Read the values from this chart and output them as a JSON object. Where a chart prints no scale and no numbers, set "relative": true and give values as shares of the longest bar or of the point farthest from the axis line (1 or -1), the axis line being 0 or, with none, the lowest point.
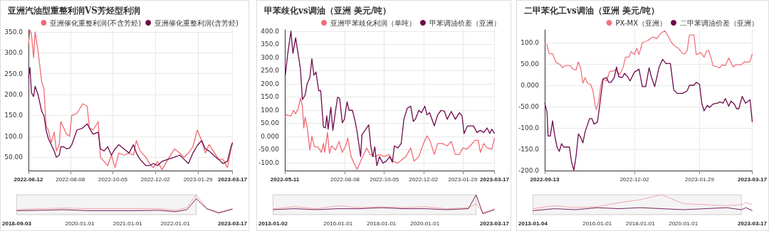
{
  "chart_data": [
    {
      "type": "line",
      "title": "亚洲汽油型重整利润VS芳烃型利润",
      "legend": "top right",
      "grid": true,
      "x": [
        "2022-06-12",
        "2022-06-14",
        "2022-06-16",
        "2022-06-19",
        "2022-06-21",
        "2022-06-25",
        "2022-06-30",
        "2022-07-03",
        "2022-07-06",
        "2022-07-09",
        "2022-07-13",
        "2022-07-17",
        "2022-07-20",
        "2022-07-24",
        "2022-07-26",
        "2022-07-30",
        "2022-08-03",
        "2022-08-07",
        "2022-08-10",
        "2022-08-17",
        "2022-08-25",
        "2022-08-31",
        "2022-09-03",
        "2022-09-08",
        "2022-09-15",
        "2022-09-18",
        "2022-09-23",
        "2022-09-28",
        "2022-10-03",
        "2022-10-08",
        "2022-10-13",
        "2022-10-20",
        "2022-10-27",
        "2022-11-02",
        "2022-11-06",
        "2022-11-11",
        "2022-11-19",
        "2022-11-24",
        "2022-11-29",
        "2022-12-05",
        "2022-12-11",
        "2022-12-19",
        "2022-12-28",
        "2023-01-04",
        "2023-01-10",
        "2023-01-16",
        "2023-01-22",
        "2023-01-28",
        "2023-02-03",
        "2023-02-08",
        "2023-02-13",
        "2023-02-19",
        "2023-02-26",
        "2023-03-04",
        "2023-03-10",
        "2023-03-15",
        "2023-03-17"
      ],
      "series": [
        {
          "name": "亚洲催化重整利润(不含芳烃)",
          "color": "#f26b73",
          "values": [
            320,
            355,
            345,
            288,
            350,
            305,
            230,
            215,
            125,
            115,
            85,
            110,
            65,
            80,
            135,
            120,
            105,
            100,
            150,
            155,
            178,
            172,
            121,
            115,
            135,
            50,
            40,
            30,
            55,
            25,
            60,
            55,
            60,
            55,
            90,
            65,
            50,
            35,
            25,
            40,
            20,
            45,
            70,
            60,
            50,
            60,
            75,
            115,
            90,
            60,
            80,
            65,
            45,
            45,
            25,
            70,
            85
          ]
        },
        {
          "name": "亚洲催化重整利润(含芳烃)",
          "color": "#6e0b4c",
          "values": [
            240,
            265,
            205,
            195,
            220,
            200,
            160,
            150,
            115,
            95,
            80,
            65,
            50,
            55,
            75,
            75,
            70,
            72,
            80,
            115,
            120,
            130,
            120,
            105,
            110,
            70,
            65,
            75,
            55,
            70,
            80,
            70,
            60,
            80,
            60,
            45,
            30,
            30,
            35,
            30,
            40,
            45,
            50,
            55,
            45,
            35,
            60,
            78,
            90,
            70,
            65,
            55,
            45,
            35,
            40,
            75,
            85
          ]
        }
      ],
      "xlim": [
        "2022-06-12",
        "2023-03-17"
      ],
      "xticks": [
        "2022-06-12",
        "2022-08-08",
        "2022-10-05",
        "2022-12-02",
        "2023-01-29",
        "2023-03-17"
      ],
      "ylim": [
        18,
        355
      ],
      "yticks": [
        {
          "value": 50,
          "label": "50.00"
        },
        {
          "value": 100,
          "label": "100.0"
        },
        {
          "value": 150,
          "label": "150.0"
        },
        {
          "value": 200,
          "label": "200.0"
        },
        {
          "value": 250,
          "label": "250.0"
        },
        {
          "value": 300,
          "label": "300.0"
        },
        {
          "value": 350,
          "label": "350.0"
        }
      ]
    },
    {
      "type": "line",
      "title": "甲苯歧化vs调油（亚洲 美元/吨）",
      "legend": "top right",
      "grid": true,
      "series": [
        {
          "name": "亚洲甲苯歧化利润（单吨）",
          "color": "#f26b73",
          "x": [
            "2022-05-11",
            "2022-05-13",
            "2022-05-20",
            "2022-05-24",
            "2022-05-27",
            "2022-05-31",
            "2022-06-03",
            "2022-06-06",
            "2022-06-08",
            "2022-06-10",
            "2022-06-13",
            "2022-06-17",
            "2022-06-20",
            "2022-06-24",
            "2022-06-29",
            "2022-07-04",
            "2022-07-07",
            "2022-07-09",
            "2022-07-13",
            "2022-07-16",
            "2022-07-19",
            "2022-07-25",
            "2022-07-30",
            "2022-08-04",
            "2022-08-09",
            "2022-08-12",
            "2022-08-17",
            "2022-08-23",
            "2022-08-26",
            "2022-08-31",
            "2022-09-09",
            "2022-09-14",
            "2022-09-21",
            "2022-09-28",
            "2022-10-05",
            "2022-10-12",
            "2022-10-18",
            "2022-10-25",
            "2022-11-01",
            "2022-11-06",
            "2022-11-13",
            "2022-11-18",
            "2022-11-25",
            "2022-12-02",
            "2022-12-07",
            "2022-12-12",
            "2022-12-18",
            "2022-12-23",
            "2022-12-30",
            "2023-01-06",
            "2023-01-12",
            "2023-01-18",
            "2023-01-24",
            "2023-01-29",
            "2023-02-04",
            "2023-02-09",
            "2023-02-16",
            "2023-02-21",
            "2023-02-24",
            "2023-03-01",
            "2023-03-06",
            "2023-03-13",
            "2023-03-17"
          ],
          "values": [
            73,
            82,
            78,
            99,
            86,
            107,
            145,
            115,
            32,
            73,
            36,
            -52,
            0,
            -40,
            -40,
            -61,
            -27,
            -61,
            15,
            -65,
            -36,
            -52,
            -19,
            -61,
            -36,
            -6,
            -77,
            -111,
            -125,
            -94,
            -44,
            -69,
            -77,
            -69,
            -77,
            -69,
            -94,
            -102,
            -86,
            -77,
            -44,
            -94,
            -77,
            -27,
            2,
            -19,
            -69,
            -27,
            -27,
            -36,
            -19,
            -69,
            -69,
            -44,
            -48,
            -36,
            -15,
            -15,
            -61,
            -27,
            -44,
            -48,
            -6
          ]
        },
        {
          "name": "甲苯调油价差（亚洲）",
          "color": "#6e0b4c",
          "x": [
            "2022-05-11",
            "2022-05-12",
            "2022-05-15",
            "2022-05-20",
            "2022-05-23",
            "2022-05-27",
            "2022-06-03",
            "2022-06-06",
            "2022-06-10",
            "2022-06-13",
            "2022-06-17",
            "2022-06-20",
            "2022-06-23",
            "2022-06-26",
            "2022-06-30",
            "2022-07-03",
            "2022-07-07",
            "2022-07-10",
            "2022-07-12",
            "2022-07-14",
            "2022-07-18",
            "2022-07-21",
            "2022-07-25",
            "2022-07-28",
            "2022-07-31",
            "2022-08-04",
            "2022-08-07",
            "2022-08-11",
            "2022-08-14",
            "2022-08-19",
            "2022-08-23",
            "2022-08-26",
            "2022-08-31",
            "2022-09-02",
            "2022-09-12",
            "2022-09-15",
            "2022-09-18",
            "2022-09-21",
            "2022-09-24",
            "2022-09-28",
            "2022-10-03",
            "2022-10-08",
            "2022-10-13",
            "2022-10-17",
            "2022-10-20",
            "2022-10-25",
            "2022-10-30",
            "2022-11-03",
            "2022-11-08",
            "2022-11-13",
            "2022-11-17",
            "2022-11-20",
            "2022-11-25",
            "2022-11-29",
            "2022-12-04",
            "2022-12-07",
            "2022-12-11",
            "2022-12-18",
            "2022-12-23",
            "2022-12-28",
            "2023-01-02",
            "2023-01-06",
            "2023-01-12",
            "2023-01-18",
            "2023-01-24",
            "2023-01-28",
            "2023-01-31",
            "2023-02-05",
            "2023-02-14",
            "2023-02-19",
            "2023-02-24",
            "2023-03-01",
            "2023-03-06",
            "2023-03-10",
            "2023-03-13",
            "2023-03-17"
          ],
          "values": [
            232,
            237,
            308,
            400,
            316,
            375,
            258,
            140,
            157,
            199,
            224,
            295,
            232,
            245,
            174,
            174,
            36,
            32,
            78,
            27,
            111,
            23,
            98,
            149,
            145,
            52,
            65,
            132,
            99,
            99,
            57,
            15,
            -77,
            6,
            44,
            -35,
            -77,
            -40,
            -111,
            -77,
            -102,
            -94,
            -77,
            -98,
            -36,
            -44,
            -27,
            65,
            107,
            115,
            57,
            65,
            99,
            90,
            115,
            82,
            90,
            40,
            82,
            99,
            95,
            65,
            95,
            65,
            90,
            78,
            11,
            40,
            40,
            15,
            23,
            15,
            32,
            11,
            27,
            11
          ]
        }
      ],
      "xlim": [
        "2022-05-11",
        "2023-03-17"
      ],
      "xticks": [
        "2022-05-11",
        "2022-08-08",
        "2022-10-05",
        "2022-12-02",
        "2023-01-29",
        "2023-03-17"
      ],
      "ylim": [
        -130,
        405
      ],
      "yticks": [
        {
          "value": -100,
          "label": "-100.0"
        },
        {
          "value": -50,
          "label": "-50.00"
        },
        {
          "value": 0,
          "label": "0.000"
        },
        {
          "value": 50,
          "label": "50.00"
        },
        {
          "value": 100,
          "label": "100.0"
        },
        {
          "value": 150,
          "label": "150.0"
        },
        {
          "value": 200,
          "label": "200.0"
        },
        {
          "value": 250,
          "label": "250.0"
        },
        {
          "value": 300,
          "label": "300.0"
        },
        {
          "value": 350,
          "label": "350.0"
        },
        {
          "value": 400,
          "label": "400.0"
        }
      ]
    },
    {
      "type": "line",
      "title": "二甲苯化工vs调油（亚洲 美元/吨）",
      "legend": "top right",
      "grid": true,
      "series": [
        {
          "name": "PX-MX（亚洲）",
          "color": "#f2737e",
          "x": [
            "2022-09-13",
            "2022-09-15",
            "2022-09-17",
            "2022-09-20",
            "2022-09-23",
            "2022-09-27",
            "2022-09-29",
            "2022-10-01",
            "2022-10-06",
            "2022-10-08",
            "2022-10-11",
            "2022-10-13",
            "2022-10-15",
            "2022-10-17",
            "2022-10-19",
            "2022-10-21",
            "2022-10-24",
            "2022-10-26",
            "2022-10-28",
            "2022-10-29",
            "2022-10-31",
            "2022-11-02",
            "2022-11-04",
            "2022-11-07",
            "2022-11-10",
            "2022-11-13",
            "2022-11-15",
            "2022-11-19",
            "2022-11-22",
            "2022-11-24",
            "2022-11-27",
            "2022-11-29",
            "2022-12-02",
            "2022-12-04",
            "2022-12-06",
            "2022-12-09",
            "2022-12-14",
            "2022-12-18",
            "2022-12-22",
            "2022-12-26",
            "2022-12-29",
            "2023-01-01",
            "2023-01-04",
            "2023-01-07",
            "2023-01-10",
            "2023-01-14",
            "2023-01-16",
            "2023-01-18",
            "2023-01-20",
            "2023-01-24",
            "2023-01-26",
            "2023-01-30",
            "2023-02-02",
            "2023-02-04",
            "2023-02-06",
            "2023-02-08",
            "2023-02-10",
            "2023-02-14",
            "2023-02-16",
            "2023-02-18",
            "2023-02-21",
            "2023-02-24",
            "2023-02-26",
            "2023-02-28",
            "2023-03-02",
            "2023-03-07",
            "2023-03-10",
            "2023-03-13",
            "2023-03-15",
            "2023-03-17"
          ],
          "values": [
            97,
            95,
            74,
            74,
            54,
            48,
            41,
            46,
            46,
            38,
            36,
            55,
            41,
            5,
            18,
            5,
            2,
            -13,
            -47,
            -57,
            -39,
            0,
            15,
            10,
            33,
            33,
            36,
            25,
            43,
            66,
            66,
            79,
            72,
            87,
            72,
            100,
            105,
            113,
            110,
            123,
            128,
            115,
            100,
            92,
            87,
            74,
            74,
            82,
            118,
            118,
            72,
            77,
            66,
            79,
            82,
            66,
            46,
            43,
            41,
            48,
            46,
            64,
            54,
            43,
            48,
            48,
            55,
            54,
            56,
            74
          ]
        },
        {
          "name": "二甲苯调油价差（亚洲）",
          "color": "#6e0b4c",
          "x": [
            "2022-09-13",
            "2022-09-15",
            "2022-09-16",
            "2022-09-18",
            "2022-09-20",
            "2022-09-22",
            "2022-09-24",
            "2022-09-26",
            "2022-09-28",
            "2022-09-30",
            "2022-10-05",
            "2022-10-07",
            "2022-10-09",
            "2022-10-11",
            "2022-10-13",
            "2022-10-15",
            "2022-10-17",
            "2022-10-19",
            "2022-10-23",
            "2022-10-25",
            "2022-10-27",
            "2022-10-30",
            "2022-11-01",
            "2022-11-04",
            "2022-11-07",
            "2022-11-09",
            "2022-11-11",
            "2022-11-14",
            "2022-11-16",
            "2022-11-18",
            "2022-11-21",
            "2022-11-23",
            "2022-11-26",
            "2022-11-28",
            "2022-12-02",
            "2022-12-06",
            "2022-12-09",
            "2022-12-12",
            "2022-12-15",
            "2022-12-17",
            "2022-12-20",
            "2022-12-24",
            "2022-12-27",
            "2022-12-30",
            "2023-01-03",
            "2023-01-06",
            "2023-01-09",
            "2023-01-14",
            "2023-01-18",
            "2023-01-20",
            "2023-01-24",
            "2023-01-26",
            "2023-01-29",
            "2023-01-31",
            "2023-02-02",
            "2023-02-05",
            "2023-02-07",
            "2023-02-10",
            "2023-02-14",
            "2023-02-16",
            "2023-02-19",
            "2023-02-21",
            "2023-02-24",
            "2023-02-26",
            "2023-03-01",
            "2023-03-03",
            "2023-03-05",
            "2023-03-08",
            "2023-03-11",
            "2023-03-15",
            "2023-03-17"
          ],
          "values": [
            -42,
            -62,
            -119,
            -119,
            -83,
            -119,
            -145,
            -155,
            -137,
            -145,
            -145,
            -181,
            -199,
            -165,
            -114,
            -122,
            -135,
            -109,
            -78,
            -78,
            -91,
            -86,
            -47,
            15,
            18,
            7,
            7,
            18,
            43,
            20,
            18,
            28,
            20,
            10,
            31,
            38,
            -3,
            -3,
            41,
            20,
            -3,
            43,
            61,
            51,
            51,
            -11,
            -19,
            -19,
            -13,
            0,
            0,
            7,
            2,
            -42,
            -60,
            -47,
            -52,
            -44,
            -42,
            -39,
            -42,
            -31,
            -49,
            -37,
            -44,
            -55,
            -55,
            -26,
            -42,
            -34,
            -86
          ]
        }
      ],
      "xlim": [
        "2022-09-13",
        "2023-03-17"
      ],
      "xticks": [
        "2022-09-13",
        "2022-12-02",
        "2023-01-29",
        "2023-03-17"
      ],
      "ylim": [
        -200,
        130
      ],
      "yticks": [
        {
          "value": -200,
          "label": "-200.0"
        },
        {
          "value": -150,
          "label": "-150.0"
        },
        {
          "value": -100,
          "label": "-100.0"
        },
        {
          "value": -50,
          "label": "-50.00"
        },
        {
          "value": 0,
          "label": "0.000"
        },
        {
          "value": 50,
          "label": "50.00"
        },
        {
          "value": 100,
          "label": "100.0"
        }
      ]
    },
    {
      "type": "line",
      "relative": true,
      "x": [
        "2018-09-03",
        "2019-03-01",
        "2019-09-01",
        "2020-03-01",
        "2020-09-01",
        "2021-03-01",
        "2021-09-01",
        "2022-01-01",
        "2022-04-01",
        "2022-06-12",
        "2022-09-01",
        "2022-12-01",
        "2023-03-17"
      ],
      "series": [
        {
          "color": "#f2a0a8",
          "values": [
            0.25,
            0.3,
            0.33,
            0.3,
            0.3,
            0.3,
            0.3,
            0.22,
            0.35,
            1,
            0.3,
            0.12,
            0.3
          ]
        },
        {
          "color": "#6e0b4c",
          "values": [
            0.2,
            0.22,
            0.25,
            0.2,
            0.2,
            0.2,
            0.22,
            0.15,
            0.25,
            0.8,
            0.3,
            0.08,
            0.28
          ]
        }
      ],
      "xlim": [
        "2018-09-03",
        "2023-03-17"
      ],
      "xticks": [
        "2018-09-03",
        "2020-01-01",
        "2021-01-01",
        "2022-01-01",
        "2023-03-17"
      ],
      "bands": [
        {
          "axis": "x",
          "from": "2018-09-03",
          "to": "2022-06-12",
          "color": "#e6e6e6"
        }
      ]
    },
    {
      "type": "line",
      "relative": true,
      "x": [
        "2013-01-02",
        "2014-01-01",
        "2015-01-01",
        "2016-01-01",
        "2017-01-01",
        "2018-01-01",
        "2019-01-01",
        "2020-01-01",
        "2021-01-01",
        "2022-01-01",
        "2022-05-11",
        "2022-09-01",
        "2023-03-17"
      ],
      "series": [
        {
          "color": "#f2a0a8",
          "values": [
            0.3,
            0.4,
            0.3,
            0.45,
            0.35,
            0.4,
            0.35,
            0.4,
            0.3,
            0.35,
            0.55,
            0.1,
            0.3
          ]
        },
        {
          "color": "#6e0b4c",
          "values": [
            0.25,
            0.3,
            0.25,
            0.3,
            0.3,
            0.35,
            0.3,
            0.3,
            0.25,
            0.3,
            1,
            0.05,
            0.25
          ]
        }
      ],
      "xlim": [
        "2013-01-02",
        "2023-03-17"
      ],
      "xticks": [
        "2013-01-02",
        "2016-01-01",
        "2018-01-01",
        "2020-01-01",
        "2023-03-17"
      ],
      "bands": [
        {
          "axis": "x",
          "from": "2013-01-02",
          "to": "2022-05-11",
          "color": "#e6e6e6"
        }
      ]
    },
    {
      "type": "line",
      "relative": true,
      "x": [
        "2013-01-04",
        "2014-01-01",
        "2015-01-01",
        "2016-01-01",
        "2017-01-01",
        "2018-01-01",
        "2019-01-01",
        "2020-01-01",
        "2021-01-01",
        "2022-01-01",
        "2022-09-13",
        "2022-12-01",
        "2023-03-17"
      ],
      "series": [
        {
          "color": "#f2a0a8",
          "values": [
            0.3,
            0.45,
            0.35,
            0.4,
            0.6,
            0.75,
            1,
            0.55,
            0.5,
            0.45,
            0.5,
            0.6,
            0.5
          ]
        },
        {
          "color": "#6e0b4c",
          "values": [
            0.2,
            0.3,
            0.25,
            0.35,
            0.3,
            0.35,
            0.3,
            0.25,
            0.3,
            0.35,
            0.25,
            0.35,
            0.2
          ]
        }
      ],
      "xlim": [
        "2013-01-04",
        "2023-03-17"
      ],
      "xticks": [
        "2013-01-04",
        "2016-01-01",
        "2018-01-01",
        "2020-01-01",
        "2023-03-17"
      ],
      "bands": [
        {
          "axis": "x",
          "from": "2013-01-04",
          "to": "2022-09-13",
          "color": "#e6e6e6"
        }
      ]
    }
  ]
}
